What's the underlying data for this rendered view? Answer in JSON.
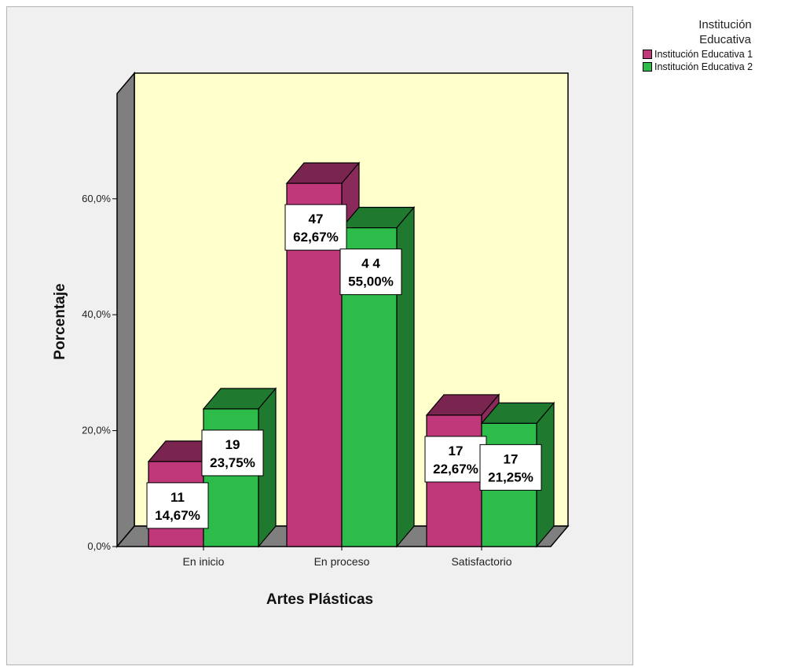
{
  "chart_data": {
    "type": "bar",
    "xlabel": "Artes Plásticas",
    "ylabel": "Porcentaje",
    "categories": [
      "En inicio",
      "En proceso",
      "Satisfactorio"
    ],
    "yticks": [
      "0,0%",
      "20,0%",
      "40,0%",
      "60,0%"
    ],
    "ylim": [
      0,
      75
    ],
    "legend_title": "Institución\nEducativa",
    "legend_position": "right",
    "grid": false,
    "series": [
      {
        "name": "Institución Educativa 1",
        "color": "#c0387a",
        "color_top": "#7a2450",
        "color_side": "#8a2a5a",
        "values": [
          14.67,
          62.67,
          22.67
        ],
        "labels": [
          [
            "11",
            "14,67%"
          ],
          [
            "47",
            "62,67%"
          ],
          [
            "17",
            "22,67%"
          ]
        ]
      },
      {
        "name": "Institución Educativa 2",
        "color": "#2dbb4a",
        "color_top": "#1f7a30",
        "color_side": "#1f7a30",
        "values": [
          23.75,
          55.0,
          21.25
        ],
        "labels": [
          [
            "19",
            "23,75%"
          ],
          [
            "4 4",
            "55,00%"
          ],
          [
            "17",
            "21,25%"
          ]
        ]
      }
    ]
  }
}
